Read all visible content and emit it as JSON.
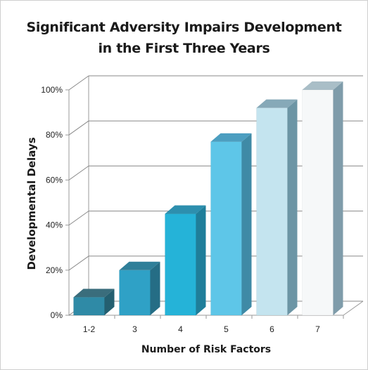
{
  "chart_data": {
    "type": "bar",
    "title_lines": [
      "Significant Adversity Impairs Development",
      "in the First Three Years"
    ],
    "xlabel": "Number of Risk Factors",
    "ylabel": "Developmental Delays",
    "categories": [
      "1-2",
      "3",
      "4",
      "5",
      "6",
      "7"
    ],
    "values": [
      8,
      20,
      45,
      77,
      92,
      100
    ],
    "y_ticks": [
      "0%",
      "20%",
      "40%",
      "60%",
      "80%",
      "100%"
    ],
    "ylim": [
      0,
      100
    ],
    "grid": true,
    "legend": "none",
    "bar_colors": [
      {
        "front": "#2f8aa6",
        "side": "#245f70",
        "top": "#3a6d7c"
      },
      {
        "front": "#2fa1c6",
        "side": "#256d85",
        "top": "#2f7f99"
      },
      {
        "front": "#25b3d8",
        "side": "#1f7e9a",
        "top": "#2d8fae"
      },
      {
        "front": "#5ec6e8",
        "side": "#3f8aa6",
        "top": "#4c9ec0"
      },
      {
        "front": "#c4e4ef",
        "side": "#6c95a5",
        "top": "#86a9b8"
      },
      {
        "front": "#f6f8f9",
        "side": "#7f9caa",
        "top": "#a9bec7"
      }
    ],
    "grid_color": "#8a8a8a"
  }
}
